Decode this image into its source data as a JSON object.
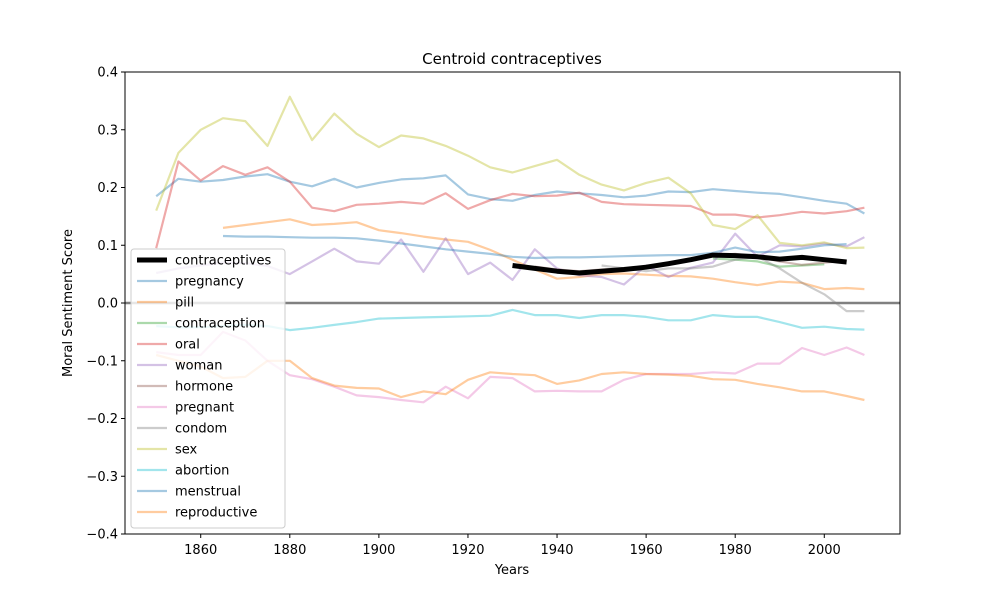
{
  "chart_data": {
    "type": "line",
    "title": "Centroid contraceptives",
    "xlabel": "Years",
    "ylabel": "Moral Sentiment Score",
    "xlim": [
      1843,
      2017
    ],
    "ylim": [
      -0.4,
      0.4
    ],
    "xticks": [
      1860,
      1880,
      1900,
      1920,
      1940,
      1960,
      1980,
      2000
    ],
    "yticks": [
      -0.4,
      -0.3,
      -0.2,
      -0.1,
      0.0,
      0.1,
      0.2,
      0.3,
      0.4
    ],
    "zero_line": true,
    "legend_position": "lower-left",
    "series": [
      {
        "name": "contraceptives",
        "color": "#000000",
        "emphasis": true,
        "x": [
          1930,
          1935,
          1940,
          1945,
          1950,
          1955,
          1960,
          1965,
          1970,
          1975,
          1980,
          1985,
          1990,
          1995,
          2000,
          2005
        ],
        "y": [
          0.065,
          0.06,
          0.055,
          0.052,
          0.055,
          0.058,
          0.062,
          0.068,
          0.075,
          0.083,
          0.082,
          0.08,
          0.076,
          0.079,
          0.075,
          0.071
        ]
      },
      {
        "name": "pregnancy",
        "color": "#1f77b4",
        "x": [
          1850,
          1855,
          1860,
          1865,
          1870,
          1875,
          1880,
          1885,
          1890,
          1895,
          1900,
          1905,
          1910,
          1915,
          1920,
          1925,
          1930,
          1935,
          1940,
          1945,
          1950,
          1955,
          1960,
          1965,
          1970,
          1975,
          1980,
          1985,
          1990,
          1995,
          2000,
          2005,
          2009
        ],
        "y": [
          0.185,
          0.215,
          0.21,
          0.213,
          0.219,
          0.223,
          0.21,
          0.202,
          0.215,
          0.2,
          0.208,
          0.214,
          0.216,
          0.221,
          0.188,
          0.18,
          0.177,
          0.187,
          0.193,
          0.19,
          0.187,
          0.183,
          0.186,
          0.193,
          0.192,
          0.197,
          0.194,
          0.191,
          0.189,
          0.183,
          0.177,
          0.172,
          0.155
        ]
      },
      {
        "name": "pill",
        "color": "#ff7f0e",
        "x": [
          1865,
          1870,
          1875,
          1880,
          1885,
          1890,
          1895,
          1900,
          1905,
          1910,
          1915,
          1920,
          1925,
          1930,
          1935,
          1940,
          1945,
          1950,
          1955,
          1960,
          1965,
          1970,
          1975,
          1980,
          1985,
          1990,
          1995,
          2000,
          2005,
          2009
        ],
        "y": [
          0.13,
          0.135,
          0.14,
          0.145,
          0.135,
          0.137,
          0.14,
          0.126,
          0.121,
          0.115,
          0.11,
          0.106,
          0.092,
          0.075,
          0.058,
          0.042,
          0.045,
          0.05,
          0.051,
          0.049,
          0.047,
          0.046,
          0.042,
          0.036,
          0.031,
          0.037,
          0.035,
          0.024,
          0.026,
          0.024
        ]
      },
      {
        "name": "contraception",
        "color": "#2ca02c",
        "x": [
          1975,
          1980,
          1985,
          1990,
          1995,
          2000
        ],
        "y": [
          0.077,
          0.075,
          0.072,
          0.063,
          0.065,
          0.067
        ]
      },
      {
        "name": "oral",
        "color": "#d62728",
        "x": [
          1850,
          1855,
          1860,
          1865,
          1870,
          1875,
          1880,
          1885,
          1890,
          1895,
          1900,
          1905,
          1910,
          1915,
          1920,
          1925,
          1930,
          1935,
          1940,
          1945,
          1950,
          1955,
          1960,
          1965,
          1970,
          1975,
          1980,
          1985,
          1990,
          1995,
          2000,
          2005,
          2009
        ],
        "y": [
          0.095,
          0.245,
          0.212,
          0.237,
          0.222,
          0.235,
          0.21,
          0.165,
          0.159,
          0.17,
          0.172,
          0.175,
          0.172,
          0.19,
          0.163,
          0.178,
          0.189,
          0.185,
          0.186,
          0.191,
          0.175,
          0.171,
          0.17,
          0.169,
          0.168,
          0.153,
          0.153,
          0.148,
          0.152,
          0.158,
          0.155,
          0.159,
          0.165
        ]
      },
      {
        "name": "woman",
        "color": "#9467bd",
        "x": [
          1850,
          1855,
          1860,
          1865,
          1870,
          1875,
          1880,
          1885,
          1890,
          1895,
          1900,
          1905,
          1910,
          1915,
          1920,
          1925,
          1930,
          1935,
          1940,
          1945,
          1950,
          1955,
          1960,
          1965,
          1970,
          1975,
          1980,
          1985,
          1990,
          1995,
          2000,
          2005,
          2009
        ],
        "y": [
          0.052,
          0.06,
          0.065,
          0.07,
          0.069,
          0.064,
          0.05,
          0.072,
          0.094,
          0.072,
          0.068,
          0.11,
          0.054,
          0.112,
          0.05,
          0.07,
          0.04,
          0.093,
          0.06,
          0.048,
          0.045,
          0.032,
          0.065,
          0.045,
          0.061,
          0.07,
          0.12,
          0.08,
          0.1,
          0.098,
          0.103,
          0.098,
          0.114
        ]
      },
      {
        "name": "hormone",
        "color": "#8c564b",
        "x": [
          1935,
          1940,
          1945,
          1950,
          1955,
          1960,
          1965,
          1970,
          1975,
          1980,
          1985,
          1990,
          1995,
          2000,
          2005
        ],
        "y": [
          0.063,
          0.058,
          0.055,
          0.058,
          0.06,
          0.063,
          0.068,
          0.074,
          0.082,
          0.085,
          0.08,
          0.072,
          0.066,
          0.07,
          0.073
        ]
      },
      {
        "name": "pregnant",
        "color": "#e377c2",
        "x": [
          1850,
          1855,
          1860,
          1865,
          1870,
          1875,
          1880,
          1885,
          1890,
          1895,
          1900,
          1905,
          1910,
          1915,
          1920,
          1925,
          1930,
          1935,
          1940,
          1945,
          1950,
          1955,
          1960,
          1965,
          1970,
          1975,
          1980,
          1985,
          1990,
          1995,
          2000,
          2005,
          2009
        ],
        "y": [
          -0.085,
          -0.09,
          -0.09,
          -0.05,
          -0.065,
          -0.1,
          -0.125,
          -0.132,
          -0.145,
          -0.16,
          -0.163,
          -0.168,
          -0.172,
          -0.145,
          -0.165,
          -0.128,
          -0.13,
          -0.153,
          -0.152,
          -0.153,
          -0.153,
          -0.133,
          -0.123,
          -0.123,
          -0.123,
          -0.12,
          -0.122,
          -0.105,
          -0.105,
          -0.078,
          -0.09,
          -0.077,
          -0.09
        ]
      },
      {
        "name": "condom",
        "color": "#7f7f7f",
        "x": [
          1950,
          1955,
          1960,
          1965,
          1970,
          1975,
          1980,
          1985,
          1990,
          1995,
          2000,
          2005,
          2009
        ],
        "y": [
          0.065,
          0.06,
          0.055,
          0.06,
          0.06,
          0.063,
          0.075,
          0.08,
          0.06,
          0.035,
          0.015,
          -0.014,
          -0.014
        ]
      },
      {
        "name": "sex",
        "color": "#bcbd22",
        "x": [
          1850,
          1855,
          1860,
          1865,
          1870,
          1875,
          1880,
          1885,
          1890,
          1895,
          1900,
          1905,
          1910,
          1915,
          1920,
          1925,
          1930,
          1935,
          1940,
          1945,
          1950,
          1955,
          1960,
          1965,
          1970,
          1975,
          1980,
          1985,
          1990,
          1995,
          2000,
          2005,
          2009
        ],
        "y": [
          0.16,
          0.26,
          0.3,
          0.32,
          0.315,
          0.272,
          0.357,
          0.282,
          0.328,
          0.293,
          0.27,
          0.29,
          0.285,
          0.272,
          0.255,
          0.235,
          0.226,
          0.237,
          0.248,
          0.222,
          0.205,
          0.195,
          0.208,
          0.217,
          0.19,
          0.135,
          0.128,
          0.152,
          0.104,
          0.1,
          0.105,
          0.095,
          0.096
        ]
      },
      {
        "name": "abortion",
        "color": "#17becf",
        "x": [
          1850,
          1855,
          1860,
          1865,
          1870,
          1875,
          1880,
          1885,
          1890,
          1895,
          1900,
          1905,
          1910,
          1915,
          1920,
          1925,
          1930,
          1935,
          1940,
          1945,
          1950,
          1955,
          1960,
          1965,
          1970,
          1975,
          1980,
          1985,
          1990,
          1995,
          2000,
          2005,
          2009
        ],
        "y": [
          -0.04,
          -0.042,
          -0.042,
          -0.04,
          -0.038,
          -0.04,
          -0.047,
          -0.043,
          -0.038,
          -0.033,
          -0.027,
          -0.026,
          -0.025,
          -0.024,
          -0.023,
          -0.022,
          -0.012,
          -0.021,
          -0.021,
          -0.026,
          -0.021,
          -0.021,
          -0.024,
          -0.03,
          -0.03,
          -0.021,
          -0.024,
          -0.024,
          -0.033,
          -0.043,
          -0.041,
          -0.045,
          -0.046
        ]
      },
      {
        "name": "menstrual",
        "color": "#1f77b4",
        "x": [
          1865,
          1870,
          1875,
          1880,
          1885,
          1890,
          1895,
          1900,
          1905,
          1910,
          1915,
          1920,
          1925,
          1930,
          1935,
          1940,
          1945,
          1950,
          1955,
          1960,
          1965,
          1970,
          1975,
          1980,
          1985,
          1990,
          1995,
          2000,
          2005
        ],
        "y": [
          0.116,
          0.115,
          0.115,
          0.114,
          0.113,
          0.113,
          0.112,
          0.108,
          0.103,
          0.098,
          0.093,
          0.089,
          0.085,
          0.08,
          0.078,
          0.079,
          0.079,
          0.08,
          0.081,
          0.082,
          0.083,
          0.083,
          0.087,
          0.096,
          0.088,
          0.089,
          0.094,
          0.1,
          0.102
        ]
      },
      {
        "name": "reproductive",
        "color": "#ff7f0e",
        "x": [
          1850,
          1855,
          1860,
          1865,
          1870,
          1875,
          1880,
          1885,
          1890,
          1895,
          1900,
          1905,
          1910,
          1915,
          1920,
          1925,
          1930,
          1935,
          1940,
          1945,
          1950,
          1955,
          1960,
          1965,
          1970,
          1975,
          1980,
          1985,
          1990,
          1995,
          2000,
          2005,
          2009
        ],
        "y": [
          -0.09,
          -0.1,
          -0.11,
          -0.13,
          -0.128,
          -0.1,
          -0.1,
          -0.13,
          -0.143,
          -0.147,
          -0.148,
          -0.163,
          -0.153,
          -0.158,
          -0.133,
          -0.12,
          -0.123,
          -0.125,
          -0.14,
          -0.134,
          -0.123,
          -0.12,
          -0.123,
          -0.124,
          -0.126,
          -0.132,
          -0.133,
          -0.14,
          -0.146,
          -0.153,
          -0.153,
          -0.161,
          -0.168
        ]
      }
    ]
  }
}
